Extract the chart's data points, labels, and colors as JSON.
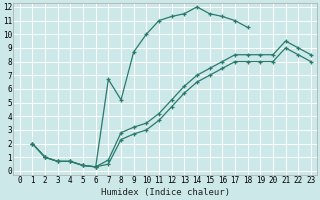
{
  "xlabel": "Humidex (Indice chaleur)",
  "xlim": [
    -0.5,
    23.5
  ],
  "ylim": [
    -0.3,
    12.3
  ],
  "xticks": [
    0,
    1,
    2,
    3,
    4,
    5,
    6,
    7,
    8,
    9,
    10,
    11,
    12,
    13,
    14,
    15,
    16,
    17,
    18,
    19,
    20,
    21,
    22,
    23
  ],
  "yticks": [
    0,
    1,
    2,
    3,
    4,
    5,
    6,
    7,
    8,
    9,
    10,
    11,
    12
  ],
  "bg_color": "#cce8e8",
  "grid_color": "#ffffff",
  "line_color": "#2a7a6e",
  "line1_x": [
    1,
    2,
    3,
    4,
    5,
    6,
    7,
    8,
    9,
    10,
    11,
    12,
    13,
    14,
    15,
    16,
    17,
    18
  ],
  "line1_y": [
    2,
    1,
    0.7,
    0.7,
    0.4,
    0.3,
    6.7,
    5.2,
    8.7,
    10,
    11,
    11.3,
    11.5,
    12,
    11.5,
    11.3,
    11,
    10.5
  ],
  "line2_x": [
    1,
    2,
    3,
    4,
    5,
    6,
    7,
    8,
    9,
    10,
    11,
    12,
    13,
    14,
    15,
    16,
    17,
    18,
    19,
    20,
    21,
    22,
    23
  ],
  "line2_y": [
    2,
    1,
    0.7,
    0.7,
    0.4,
    0.3,
    0.8,
    2.8,
    3.2,
    3.5,
    4.2,
    5.2,
    6.2,
    7.0,
    7.5,
    8.0,
    8.5,
    8.5,
    8.5,
    8.5,
    9.5,
    9.0,
    8.5
  ],
  "line3_x": [
    1,
    2,
    3,
    4,
    5,
    6,
    7,
    8,
    9,
    10,
    11,
    12,
    13,
    14,
    15,
    16,
    17,
    18,
    19,
    20,
    21,
    22,
    23
  ],
  "line3_y": [
    2,
    1,
    0.7,
    0.7,
    0.4,
    0.3,
    0.5,
    2.3,
    2.7,
    3.0,
    3.7,
    4.7,
    5.7,
    6.5,
    7.0,
    7.5,
    8.0,
    8.0,
    8.0,
    8.0,
    9.0,
    8.5,
    8.0
  ]
}
